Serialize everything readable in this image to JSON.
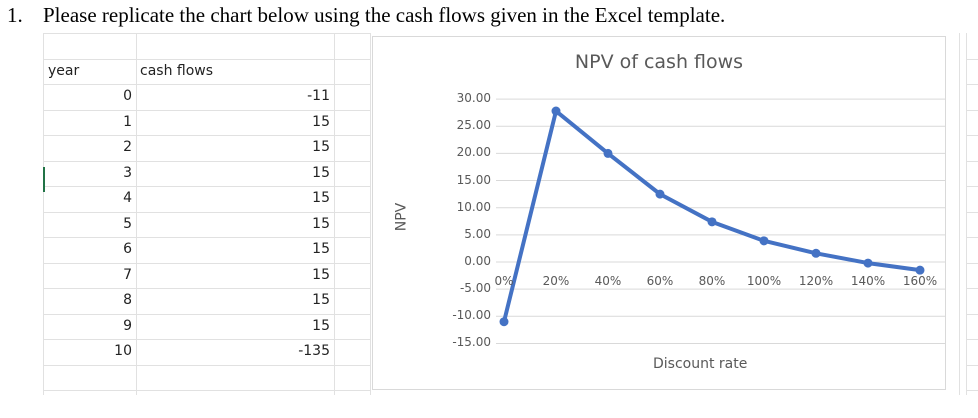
{
  "question": {
    "number": "1.",
    "text": "Please replicate the chart below using the cash flows given in the Excel template."
  },
  "table": {
    "headers": {
      "year": "year",
      "cash_flows": "cash flows"
    },
    "rows": [
      {
        "year": "0",
        "cash_flow": "-11"
      },
      {
        "year": "1",
        "cash_flow": "15"
      },
      {
        "year": "2",
        "cash_flow": "15"
      },
      {
        "year": "3",
        "cash_flow": "15"
      },
      {
        "year": "4",
        "cash_flow": "15"
      },
      {
        "year": "5",
        "cash_flow": "15"
      },
      {
        "year": "6",
        "cash_flow": "15"
      },
      {
        "year": "7",
        "cash_flow": "15"
      },
      {
        "year": "8",
        "cash_flow": "15"
      },
      {
        "year": "9",
        "cash_flow": "15"
      },
      {
        "year": "10",
        "cash_flow": "-135"
      }
    ]
  },
  "chart_data": {
    "type": "line",
    "title": "NPV of cash flows",
    "xlabel": "Discount rate",
    "ylabel": "NPV",
    "categories": [
      "0%",
      "20%",
      "40%",
      "60%",
      "80%",
      "100%",
      "120%",
      "140%",
      "160%"
    ],
    "series": [
      {
        "name": "NPV",
        "values": [
          -11.0,
          27.8,
          20.0,
          12.5,
          7.4,
          3.9,
          1.6,
          -0.2,
          -1.5
        ],
        "color": "#4472c4"
      }
    ],
    "ylim": [
      -15,
      30
    ],
    "yticks": [
      "30.00",
      "25.00",
      "20.00",
      "15.00",
      "10.00",
      "5.00",
      "0.00",
      "-5.00",
      "-10.00",
      "-15.00"
    ],
    "grid": true,
    "legend": "none",
    "markers": true
  }
}
